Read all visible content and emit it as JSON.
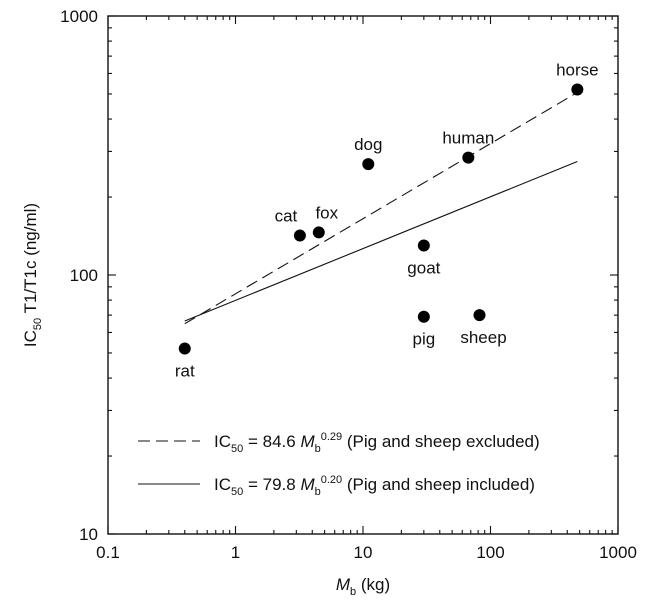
{
  "chart_data": {
    "type": "scatter",
    "xscale": "log",
    "yscale": "log",
    "xlim": [
      0.1,
      1000
    ],
    "ylim": [
      10,
      1000
    ],
    "xticks": [
      "0.1",
      "1",
      "10",
      "100",
      "1000"
    ],
    "yticks": [
      "10",
      "100",
      "1000"
    ],
    "xlabel": {
      "main": "M",
      "sub": "b",
      "unit": " (kg)"
    },
    "ylabel": {
      "main": "IC",
      "sub": "50",
      "rest": " T1/T1c (ng/ml)"
    },
    "points": [
      {
        "label": "rat",
        "x": 0.4,
        "y": 52
      },
      {
        "label": "cat",
        "x": 3.2,
        "y": 142
      },
      {
        "label": "fox",
        "x": 4.5,
        "y": 146
      },
      {
        "label": "dog",
        "x": 11,
        "y": 268
      },
      {
        "label": "goat",
        "x": 30,
        "y": 130
      },
      {
        "label": "pig",
        "x": 30,
        "y": 69
      },
      {
        "label": "sheep",
        "x": 82,
        "y": 70
      },
      {
        "label": "human",
        "x": 67,
        "y": 284
      },
      {
        "label": "horse",
        "x": 480,
        "y": 520
      }
    ],
    "fits": [
      {
        "style": "dashed",
        "coef": "84.6",
        "exp": "0.29",
        "note": "(Pig and sheep excluded)",
        "x_range": [
          0.4,
          480
        ]
      },
      {
        "style": "solid",
        "coef": "79.8",
        "exp": "0.20",
        "note": "(Pig and sheep included)",
        "x_range": [
          0.4,
          480
        ]
      }
    ],
    "legend": {
      "placement": "bottom-left",
      "entries": [
        {
          "pre": "IC",
          "sub": "50",
          "eq": " = 84.6 ",
          "var": "M",
          "var_sub": "b",
          "sup": "0.29",
          "post": " (Pig and sheep excluded)"
        },
        {
          "pre": "IC",
          "sub": "50",
          "eq": " = 79.8 ",
          "var": "M",
          "var_sub": "b",
          "sup": "0.20",
          "post": " (Pig and sheep included)"
        }
      ]
    },
    "grid": false
  }
}
